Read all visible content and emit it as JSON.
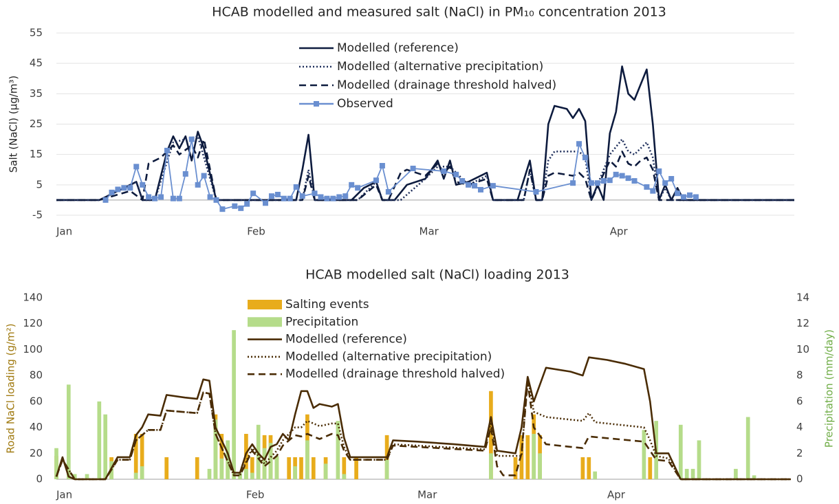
{
  "chart_data": [
    {
      "type": "line",
      "title": "HCAB modelled and measured salt (NaCl) in PM₁₀ concentration 2013",
      "ylabel": "Salt (NaCl) (µg/m³)",
      "xlim": [
        1,
        121
      ],
      "xticks": [
        {
          "value": 1,
          "label": "Jan"
        },
        {
          "value": 32,
          "label": "Feb"
        },
        {
          "value": 60,
          "label": "Mar"
        },
        {
          "value": 91,
          "label": "Apr"
        }
      ],
      "ylim": [
        -5,
        55
      ],
      "yticks": [
        -5,
        5,
        15,
        25,
        35,
        45,
        55
      ],
      "grid": true,
      "legend": "top",
      "series": [
        {
          "name": "Modelled (reference)",
          "color": "#0d1b3e",
          "style": "solid",
          "x": [
            1,
            8,
            11,
            14,
            15,
            17,
            19,
            20,
            21,
            22,
            23,
            24,
            25,
            27,
            40,
            41,
            42,
            43,
            49,
            51,
            53,
            54,
            56,
            58,
            61,
            63,
            64,
            65,
            66,
            68,
            71,
            72,
            76,
            78,
            79,
            80,
            81,
            82,
            84,
            85,
            86,
            87,
            88,
            89,
            90,
            91,
            92,
            93,
            94,
            95,
            97,
            98,
            99,
            100,
            101,
            102,
            103,
            121
          ],
          "values": [
            0,
            0,
            3,
            6,
            0,
            0,
            16,
            21,
            17,
            21,
            13,
            22.5,
            17,
            0,
            0,
            10,
            21.5,
            0,
            0,
            4,
            6,
            0,
            0,
            5,
            7,
            13,
            7,
            13,
            5,
            6,
            9,
            0,
            0,
            13,
            0,
            0,
            25,
            31,
            30,
            27,
            30,
            26,
            0,
            5,
            0,
            22,
            29,
            44,
            35,
            33,
            43,
            25,
            0,
            5,
            0,
            4,
            0,
            0
          ]
        },
        {
          "name": "Modelled (alternative precipitation)",
          "color": "#1f2f5c",
          "style": "dotted",
          "x": [
            1,
            8,
            14,
            15,
            17,
            20,
            22,
            24,
            27,
            41,
            42,
            43,
            50,
            53,
            54,
            57,
            61,
            63,
            65,
            68,
            71,
            72,
            77,
            78,
            79,
            80,
            81,
            82,
            84,
            86,
            87,
            88,
            91,
            93,
            94,
            95,
            96,
            97,
            98,
            99,
            100,
            101,
            121
          ],
          "values": [
            0,
            0,
            6,
            0,
            0,
            19,
            20,
            21,
            0,
            0,
            10,
            0,
            0,
            6,
            0,
            0,
            7,
            11,
            11,
            5,
            8,
            0,
            0,
            10,
            0,
            0,
            13,
            16,
            16,
            16,
            14,
            0,
            15,
            20,
            16,
            15,
            17,
            19,
            14,
            0,
            4,
            0,
            0
          ]
        },
        {
          "name": "Modelled (drainage threshold halved)",
          "color": "#0d1b3e",
          "style": "dashed",
          "x": [
            1,
            8,
            13,
            15,
            16,
            18,
            20,
            21,
            23,
            24,
            25,
            27,
            41,
            42,
            43,
            50,
            53,
            54,
            55,
            57,
            58,
            61,
            63,
            64,
            65,
            66,
            68,
            71,
            72,
            77,
            78,
            79,
            80,
            81,
            82,
            85,
            86,
            87,
            88,
            91,
            92,
            93,
            94,
            95,
            96,
            97,
            98,
            99,
            121
          ],
          "values": [
            0,
            0,
            3,
            0,
            12,
            14,
            18,
            15,
            18,
            14,
            20,
            0,
            0,
            8,
            0,
            0,
            5,
            0,
            0,
            9,
            10,
            8,
            12,
            9,
            11,
            6,
            5,
            7,
            0,
            0,
            10,
            0,
            0,
            8,
            9,
            8,
            9,
            7,
            0,
            13,
            11,
            16,
            12,
            11,
            13,
            14,
            10,
            0,
            0
          ]
        },
        {
          "name": "Observed",
          "color": "#6a8fd0",
          "style": "solid",
          "marker": "square",
          "x": [
            9,
            10,
            11,
            12,
            13,
            14,
            15,
            16,
            17,
            18,
            19,
            20,
            21,
            22,
            23,
            24,
            25,
            26,
            27,
            28,
            30,
            31,
            32,
            33,
            35,
            36,
            37,
            38,
            39,
            40,
            41,
            43,
            44,
            45,
            46,
            47,
            48,
            49,
            50,
            53,
            54,
            55,
            59,
            64,
            66,
            67,
            68,
            69,
            70,
            72,
            79,
            85,
            86,
            87,
            88,
            89,
            90,
            91,
            92,
            93,
            94,
            95,
            97,
            98,
            99,
            100,
            101,
            102,
            103,
            104,
            105
          ],
          "values": [
            0,
            2.5,
            3.5,
            4,
            4,
            11,
            5,
            1,
            0.5,
            1,
            16.3,
            0.5,
            0.5,
            8.6,
            20,
            5,
            8,
            1,
            0,
            -3,
            -2,
            -2.7,
            -1.3,
            2.2,
            -1,
            1.3,
            1.8,
            0.5,
            0.5,
            4.3,
            1.3,
            2.2,
            1,
            0.5,
            0.5,
            1,
            1.3,
            5,
            4,
            6.5,
            11.3,
            2.7,
            10.4,
            9.5,
            8.4,
            6.3,
            5,
            4.7,
            3.4,
            4.7,
            2.7,
            5.6,
            18.5,
            14,
            5.6,
            5.6,
            6.3,
            6.5,
            8.4,
            8,
            7.2,
            6.3,
            4.3,
            3,
            9.5,
            5.6,
            7,
            2.2,
            1,
            1.6,
            1
          ]
        }
      ]
    },
    {
      "type": "combo",
      "title": "HCAB modelled salt (NaCl) loading 2013",
      "ylabel": "Road NaCl loading (g/m²)",
      "ylabel_color": "#a07a10",
      "y2label": "Precipitation (mm/day)",
      "y2label_color": "#70ad47",
      "xlim": [
        1,
        121
      ],
      "xticks": [
        {
          "value": 1,
          "label": "Jan"
        },
        {
          "value": 32,
          "label": "Feb"
        },
        {
          "value": 60,
          "label": "Mar"
        },
        {
          "value": 91,
          "label": "Apr"
        }
      ],
      "ylim": [
        0,
        140
      ],
      "yticks": [
        0,
        20,
        40,
        60,
        80,
        100,
        120,
        140
      ],
      "y2lim": [
        0,
        14
      ],
      "y2ticks": [
        0,
        2,
        4,
        6,
        8,
        10,
        12,
        14
      ],
      "grid": false,
      "legend": "top",
      "series": [
        {
          "name": "Salting events",
          "type": "bar",
          "color": "#e8ac1c",
          "x": [
            1,
            10,
            14,
            15,
            19,
            24,
            27,
            28,
            29,
            32,
            33,
            34,
            35,
            36,
            37,
            39,
            40,
            41,
            42,
            43,
            45,
            48,
            50,
            55,
            72,
            76,
            77,
            78,
            79,
            80,
            87,
            88,
            98
          ],
          "values": [
            18,
            17,
            35,
            35,
            17,
            17,
            50,
            35,
            17,
            35,
            17,
            17,
            34,
            34,
            17,
            17,
            17,
            17,
            50,
            17,
            17,
            17,
            17,
            34,
            68,
            17,
            34,
            34,
            50,
            34,
            17,
            17,
            17
          ]
        },
        {
          "name": "Precipitation",
          "type": "bar",
          "axis": "y2",
          "color": "#b5dc8a",
          "x": [
            1,
            3,
            4,
            6,
            8,
            9,
            10,
            14,
            15,
            26,
            27,
            28,
            29,
            30,
            31,
            32,
            33,
            34,
            35,
            36,
            37,
            40,
            42,
            45,
            47,
            48,
            55,
            72,
            79,
            80,
            89,
            97,
            99,
            103,
            104,
            105,
            106,
            112,
            114,
            115
          ],
          "values": [
            2.4,
            7.3,
            0.4,
            0.4,
            6,
            5,
            1.4,
            0.5,
            1,
            0.8,
            4.6,
            1.6,
            3,
            11.5,
            0.5,
            0.8,
            0.5,
            4.2,
            2.4,
            2.8,
            1.8,
            1,
            3,
            1.2,
            4.5,
            0.4,
            1.5,
            2,
            3.5,
            2,
            0.6,
            3.8,
            4.5,
            4.2,
            0.8,
            0.8,
            3,
            0.8,
            4.8,
            0.3
          ]
        },
        {
          "name": "Modelled (reference)",
          "type": "line",
          "color": "#4a2c05",
          "style": "solid",
          "x": [
            1,
            2,
            3,
            4,
            9,
            11,
            13,
            14,
            15,
            16,
            18,
            19,
            22,
            24,
            25,
            26,
            27,
            29,
            30,
            31,
            32,
            33,
            34,
            35,
            36,
            37,
            38,
            39,
            40,
            41,
            42,
            43,
            44,
            46,
            47,
            48,
            49,
            55,
            56,
            60,
            66,
            71,
            72,
            73,
            76,
            77,
            78,
            79,
            81,
            85,
            87,
            88,
            91,
            94,
            97,
            98,
            99,
            101,
            103,
            121
          ],
          "values": [
            2,
            17,
            2,
            0,
            0,
            17,
            17,
            34,
            40,
            50,
            49,
            65,
            63,
            62,
            77,
            76,
            40,
            20,
            5,
            5,
            20,
            27,
            20,
            15,
            25,
            27,
            35,
            30,
            50,
            68,
            68,
            55,
            58,
            56,
            58,
            32,
            17,
            17,
            30,
            29,
            27,
            25,
            48,
            22,
            20,
            40,
            79,
            60,
            86,
            83,
            80,
            94,
            92,
            89,
            85,
            60,
            20,
            20,
            0,
            0
          ]
        },
        {
          "name": "Modelled (alternative precipitation)",
          "type": "line",
          "color": "#4a2c05",
          "style": "dotted",
          "x": [
            1,
            2,
            4,
            9,
            11,
            13,
            14,
            16,
            18,
            19,
            24,
            25,
            26,
            27,
            30,
            31,
            33,
            35,
            37,
            38,
            40,
            41,
            42,
            44,
            46,
            47,
            48,
            49,
            55,
            56,
            71,
            72,
            73,
            77,
            78,
            79,
            81,
            85,
            87,
            88,
            89,
            97,
            98,
            99,
            101,
            103,
            121
          ],
          "values": [
            2,
            15,
            0,
            0,
            15,
            15,
            30,
            38,
            38,
            53,
            51,
            67,
            66,
            35,
            3,
            3,
            24,
            12,
            22,
            30,
            40,
            40,
            45,
            41,
            43,
            43,
            25,
            15,
            15,
            27,
            23,
            44,
            18,
            18,
            79,
            52,
            48,
            46,
            45,
            51,
            44,
            40,
            30,
            18,
            16,
            0,
            0
          ]
        },
        {
          "name": "Modelled (drainage threshold halved)",
          "type": "line",
          "color": "#4a2c05",
          "style": "dashed",
          "x": [
            1,
            2,
            4,
            9,
            11,
            13,
            14,
            16,
            18,
            19,
            24,
            25,
            26,
            27,
            30,
            31,
            33,
            35,
            37,
            38,
            40,
            41,
            42,
            44,
            46,
            47,
            48,
            49,
            55,
            56,
            71,
            72,
            73,
            74,
            76,
            77,
            78,
            79,
            81,
            85,
            87,
            88,
            97,
            98,
            99,
            101,
            103,
            121
          ],
          "values": [
            2,
            15,
            0,
            0,
            15,
            15,
            30,
            38,
            38,
            53,
            51,
            67,
            66,
            35,
            3,
            3,
            22,
            10,
            18,
            26,
            34,
            33,
            35,
            31,
            35,
            34,
            22,
            15,
            15,
            26,
            22,
            40,
            10,
            3,
            3,
            20,
            75,
            40,
            27,
            25,
            24,
            33,
            29,
            22,
            15,
            14,
            0,
            0
          ]
        }
      ]
    }
  ]
}
